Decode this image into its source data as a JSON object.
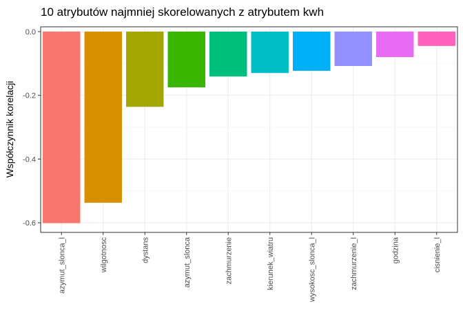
{
  "chart_data": {
    "type": "bar",
    "title": "10 atrybutów najmniej skorelowanych z atrybutem kwh",
    "xlabel": "",
    "ylabel": "Współczynnik korelacji",
    "categories": [
      "azymut_slonca_l",
      "wilgotnosc",
      "dystans",
      "azymut_slonca",
      "zachmurzenie",
      "kierunek_wiatru",
      "wysokosc_slonca_l",
      "zachmurzenie_l",
      "godzina",
      "cisnienie_l"
    ],
    "values": [
      -0.601,
      -0.537,
      -0.236,
      -0.175,
      -0.141,
      -0.13,
      -0.123,
      -0.108,
      -0.08,
      -0.045
    ],
    "colors": [
      "#F8766D",
      "#D89000",
      "#A3A500",
      "#39B600",
      "#00BF7D",
      "#00BFC4",
      "#00B0F6",
      "#9590FF",
      "#E76BF3",
      "#FF62BC"
    ],
    "yticks": [
      0.0,
      -0.2,
      -0.4,
      -0.6
    ],
    "ytick_labels": [
      "0.0",
      "-0.2",
      "-0.4",
      "-0.6"
    ],
    "ylim": [
      -0.63,
      0.015
    ],
    "grid": true,
    "legend": "none"
  }
}
